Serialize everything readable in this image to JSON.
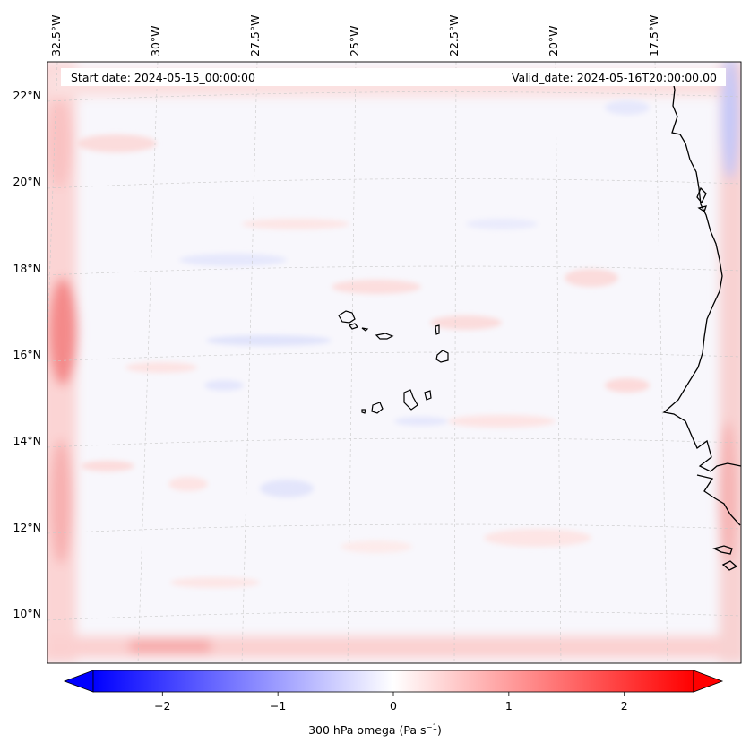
{
  "header": {
    "start_label": "Start date: 2024-05-15_00:00:00",
    "valid_label": "Valid_date: 2024-05-16T20:00:00.00"
  },
  "map": {
    "lon_labels": [
      "32.5°W",
      "30°W",
      "27.5°W",
      "25°W",
      "22.5°W",
      "20°W",
      "17.5°W"
    ],
    "lat_labels": [
      "22°N",
      "20°N",
      "18°N",
      "16°N",
      "14°N",
      "12°N",
      "10°N"
    ],
    "coastline": "black",
    "gridlines": "dashed light grey"
  },
  "colorbar": {
    "label_main": "300 hPa omega (Pa s",
    "label_exp": "−1",
    "label_end": ")",
    "ticks": [
      "−2",
      "−1",
      "0",
      "1",
      "2"
    ],
    "tick_values": [
      -2,
      -1,
      0,
      1,
      2
    ],
    "range": [
      -2.6,
      2.6
    ],
    "extend": "both",
    "cmap": "bwr",
    "colors": {
      "negative": "#0000ff",
      "zero": "#ffffff",
      "positive": "#ff0000"
    }
  }
}
